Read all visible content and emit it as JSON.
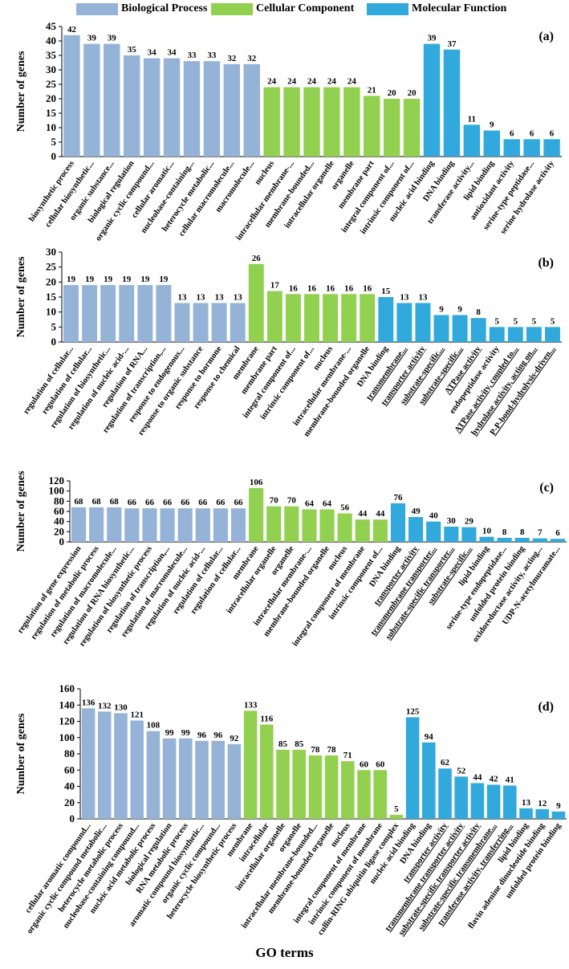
{
  "legend": {
    "items": [
      {
        "label": "Biological Process",
        "color": "#95b3d7"
      },
      {
        "label": "Cellular Component",
        "color": "#92d050"
      },
      {
        "label": "Molecular Function",
        "color": "#31a9dc"
      }
    ]
  },
  "x_axis_title": "GO terms",
  "colors": {
    "bp": "#95b3d7",
    "cc": "#92d050",
    "mf": "#31a9dc",
    "underline": "#7030a0"
  },
  "chart_data": [
    {
      "type": "bar",
      "panel_label": "(a)",
      "ylabel": "Number of genes",
      "ylim": [
        0,
        45
      ],
      "yticks": [
        0,
        5,
        10,
        15,
        20,
        25,
        30,
        35,
        40,
        45
      ],
      "categories": [
        "biosynthetic process",
        "cellular biosynthetic...",
        "organic substance...",
        "biological regulation",
        "organic cyclic compound...",
        "cellular aromatic...",
        "nucleobase-containing...",
        "heterocycle metabolic...",
        "cellular macromolecule...",
        "macromolecule...",
        "nucleus",
        "intracellular membrane-...",
        "membrane-bounded...",
        "intracellular organelle",
        "organelle",
        "membrane part",
        "integral component of...",
        "intrinsic component of...",
        "nucleic acid binding",
        "DNA binding",
        "transferase activity...",
        "lipid binding",
        "antioxidant activity",
        "serine-type peptidase...",
        "serine hydrolase activity"
      ],
      "values": [
        42,
        39,
        39,
        35,
        34,
        34,
        33,
        33,
        32,
        32,
        24,
        24,
        24,
        24,
        24,
        21,
        20,
        20,
        39,
        37,
        11,
        9,
        6,
        6,
        6
      ],
      "groups": [
        "bp",
        "bp",
        "bp",
        "bp",
        "bp",
        "bp",
        "bp",
        "bp",
        "bp",
        "bp",
        "cc",
        "cc",
        "cc",
        "cc",
        "cc",
        "cc",
        "cc",
        "cc",
        "mf",
        "mf",
        "mf",
        "mf",
        "mf",
        "mf",
        "mf"
      ],
      "underlined": []
    },
    {
      "type": "bar",
      "panel_label": "(b)",
      "ylabel": "Number of genes",
      "ylim": [
        0,
        30
      ],
      "yticks": [
        0,
        5,
        10,
        15,
        20,
        25,
        30
      ],
      "categories": [
        "regulation of cellular...",
        "regulation of cellular...",
        "regulation of biosynthetic...",
        "regulation of nucleic acid-...",
        "regulation of RNA...",
        "regulation of transcription,...",
        "response to endogenous...",
        "response to organic substance",
        "response to hormone",
        "response to chemical",
        "membrane",
        "membrane part",
        "integral component of...",
        "intrinsic component of...",
        "nucleus",
        "intracellular membrane-...",
        "membrane-bounded organelle",
        "DNA binding",
        "transmembrane...",
        "transporter activity",
        "substrate-specific...",
        "substrate-specific...",
        "ATPase activity",
        "endopeptidase activity",
        "ATPase activity, coupled to...",
        "hydrolase activity, acting on...",
        "P-P-bond-hydrolysis-driven..."
      ],
      "values": [
        19,
        19,
        19,
        19,
        19,
        19,
        13,
        13,
        13,
        13,
        26,
        17,
        16,
        16,
        16,
        16,
        16,
        15,
        13,
        13,
        9,
        9,
        8,
        5,
        5,
        5,
        5
      ],
      "groups": [
        "bp",
        "bp",
        "bp",
        "bp",
        "bp",
        "bp",
        "bp",
        "bp",
        "bp",
        "bp",
        "cc",
        "cc",
        "cc",
        "cc",
        "cc",
        "cc",
        "cc",
        "mf",
        "mf",
        "mf",
        "mf",
        "mf",
        "mf",
        "mf",
        "mf",
        "mf",
        "mf"
      ],
      "underlined": [
        18,
        19,
        20,
        21,
        22,
        24,
        25,
        26
      ]
    },
    {
      "type": "bar",
      "panel_label": "(c)",
      "ylabel": "Number of genes",
      "ylim": [
        0,
        120
      ],
      "yticks": [
        0,
        20,
        40,
        60,
        80,
        100,
        120
      ],
      "categories": [
        "regulation of gene expression",
        "regulation of metabolic process",
        "regulation of macromolecule...",
        "regulation of RNA biosynthetic...",
        "regulation of biosynthetic process",
        "regulation of transcription,...",
        "regulation of macromolecule...",
        "regulation of nucleic acid-...",
        "regulation of cellular...",
        "regulation of cellular...",
        "membrane",
        "intracellular organelle",
        "organelle",
        "intracellular membrane-...",
        "membrane-bounded organelle",
        "nucleus",
        "integral component of membrane",
        "intrinsic component of...",
        "DNA binding",
        "transporter activity",
        "transmembrane transporter...",
        "substrate-specific transporter...",
        "substrate-specific...",
        "lipid binding",
        "serine-type endopeptidase...",
        "unfolded protein binding",
        "oxidoreductase activity, acting...",
        "UDP-N-acetylmuramate..."
      ],
      "values": [
        68,
        68,
        68,
        66,
        66,
        66,
        66,
        66,
        66,
        66,
        106,
        70,
        70,
        64,
        64,
        56,
        44,
        44,
        76,
        49,
        40,
        30,
        29,
        10,
        8,
        8,
        7,
        6
      ],
      "groups": [
        "bp",
        "bp",
        "bp",
        "bp",
        "bp",
        "bp",
        "bp",
        "bp",
        "bp",
        "bp",
        "cc",
        "cc",
        "cc",
        "cc",
        "cc",
        "cc",
        "cc",
        "cc",
        "mf",
        "mf",
        "mf",
        "mf",
        "mf",
        "mf",
        "mf",
        "mf",
        "mf",
        "mf"
      ],
      "underlined": [
        19,
        20,
        21,
        22
      ]
    },
    {
      "type": "bar",
      "panel_label": "(d)",
      "ylabel": "Number of genes",
      "ylim": [
        0,
        160
      ],
      "yticks": [
        0,
        20,
        40,
        60,
        80,
        100,
        120,
        140,
        160
      ],
      "categories": [
        "cellular aromatic compound...",
        "organic cyclic compound metabolic...",
        "heterocycle metabolic process",
        "nucleobase-containing compound...",
        "nucleic acid metabolic process",
        "biological regulation",
        "RNA metabolic process",
        "aromatic compound biosynthetic...",
        "organic cyclic compound...",
        "heterocycle biosynthetic process",
        "membrane",
        "intracellular",
        "intracellular organelle",
        "organelle",
        "intracellular membrane-bounded...",
        "membrane-bounded organelle",
        "nucleus",
        "integral component of membrane",
        "intrinsic component of membrane",
        "cullin-RING ubiquitin ligase complex",
        "nucleic acid binding",
        "DNA binding",
        "transporter activity",
        "transmembrane transporter activity",
        "substrate-specific transporter activity",
        "substrate-specific transmembrane...",
        "transferase activity, transferring...",
        "lipid binding",
        "flavin adenine dinucleotide binding",
        "unfolded protein binding"
      ],
      "values": [
        136,
        132,
        130,
        121,
        108,
        99,
        99,
        96,
        96,
        92,
        133,
        116,
        85,
        85,
        78,
        78,
        71,
        60,
        60,
        5,
        125,
        94,
        62,
        52,
        44,
        42,
        41,
        13,
        12,
        9
      ],
      "groups": [
        "bp",
        "bp",
        "bp",
        "bp",
        "bp",
        "bp",
        "bp",
        "bp",
        "bp",
        "bp",
        "cc",
        "cc",
        "cc",
        "cc",
        "cc",
        "cc",
        "cc",
        "cc",
        "cc",
        "cc",
        "mf",
        "mf",
        "mf",
        "mf",
        "mf",
        "mf",
        "mf",
        "mf",
        "mf",
        "mf"
      ],
      "underlined": [
        22,
        23,
        24,
        25,
        26
      ]
    }
  ]
}
